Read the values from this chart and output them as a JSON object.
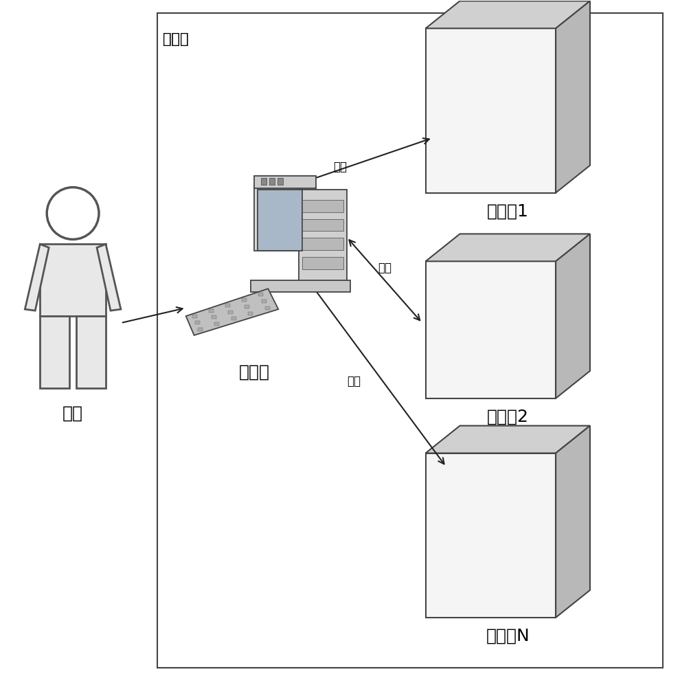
{
  "bg_color": "#ffffff",
  "border_color": "#555555",
  "text_color": "#000000",
  "lan_label": "局域网",
  "user_label": "用户",
  "pc_label": "电脑端",
  "controllers": [
    "控制器1",
    "控制器2",
    "控制器N"
  ],
  "network_label": "网络",
  "font_size_label": 18,
  "font_size_lan": 15,
  "font_size_network": 12
}
